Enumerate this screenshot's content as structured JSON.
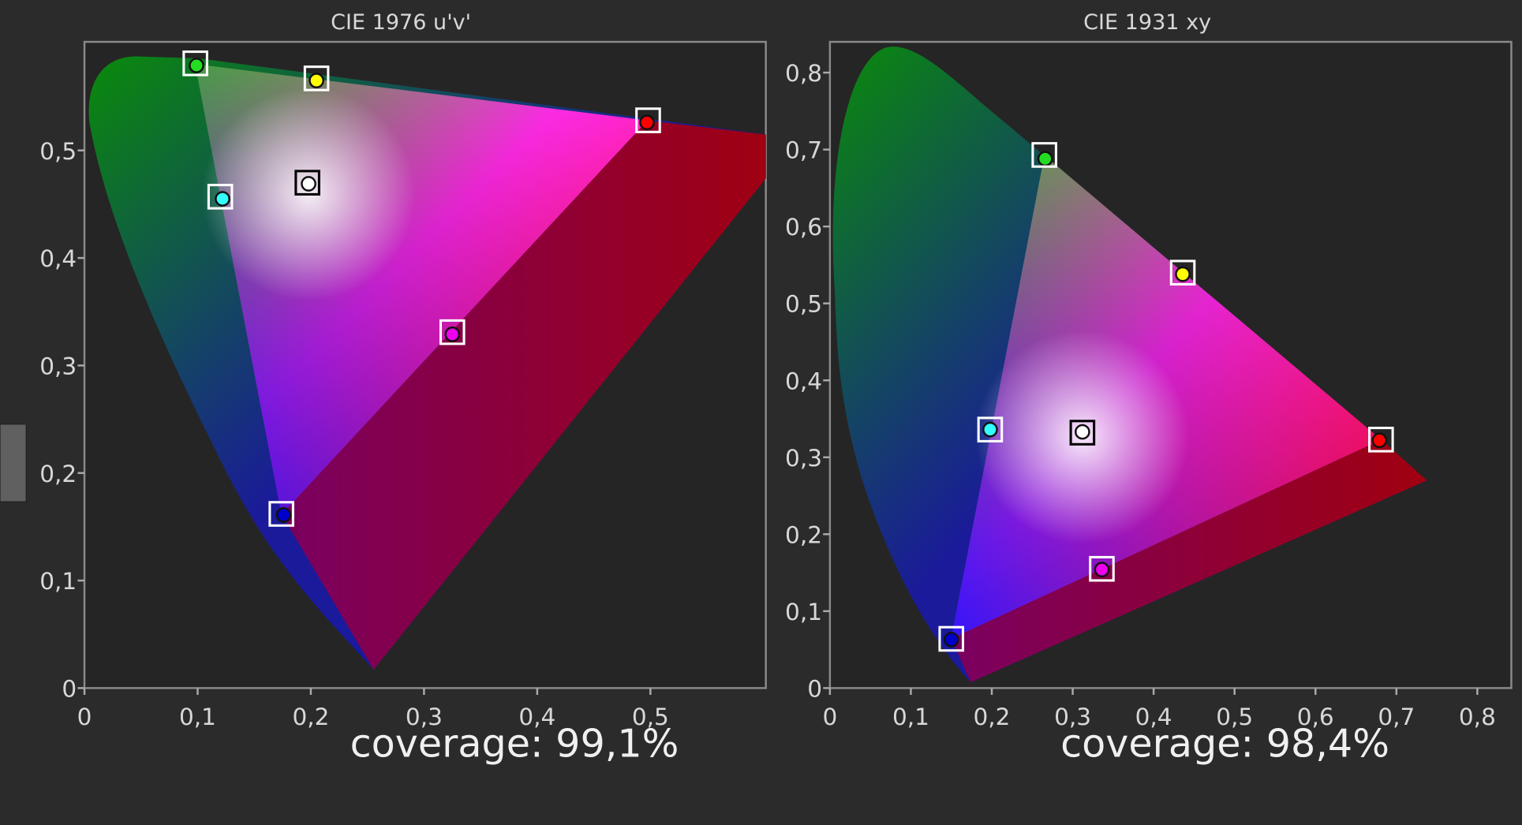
{
  "chart_data": [
    {
      "type": "scatter",
      "title": "CIE 1976 u'v'",
      "annotation": "coverage: 99,1%",
      "xlim": [
        0,
        0.602
      ],
      "ylim": [
        0,
        0.601
      ],
      "xticks": [
        0,
        {
          "value": 0.1,
          "label": "0,1"
        },
        {
          "value": 0.2,
          "label": "0,2"
        },
        {
          "value": 0.3,
          "label": "0,3"
        },
        {
          "value": 0.4,
          "label": "0,4"
        },
        {
          "value": 0.5,
          "label": "0,5"
        }
      ],
      "yticks": [
        0,
        {
          "value": 0.1,
          "label": "0,1"
        },
        {
          "value": 0.2,
          "label": "0,2"
        },
        {
          "value": 0.3,
          "label": "0,3"
        },
        {
          "value": 0.4,
          "label": "0,4"
        },
        {
          "value": 0.5,
          "label": "0,5"
        }
      ],
      "series": [
        {
          "marker": "circle",
          "x": [
            0.099,
            0.205,
            0.497,
            0.198,
            0.122,
            0.325,
            0.176
          ],
          "values": [
            0.579,
            0.565,
            0.526,
            0.469,
            0.455,
            0.329,
            0.161
          ],
          "colors": [
            "#22dd22",
            "#ffff00",
            "#ff0000",
            "#ffffff",
            "#33ffff",
            "#ee00ee",
            "#0000cc"
          ]
        },
        {
          "marker": "square",
          "x": [
            0.098,
            0.205,
            0.498,
            0.197,
            0.12,
            0.325,
            0.174
          ],
          "values": [
            0.581,
            0.567,
            0.528,
            0.47,
            0.457,
            0.331,
            0.162
          ],
          "colors": [
            "#ffffff",
            "#ffffff",
            "#ffffff",
            "#000000",
            "#ffffff",
            "#ffffff",
            "#ffffff"
          ]
        }
      ]
    },
    {
      "type": "scatter",
      "title": "CIE 1931 xy",
      "annotation": "coverage: 98,4%",
      "xlim": [
        0,
        0.842
      ],
      "ylim": [
        0,
        0.84
      ],
      "xticks": [
        0,
        {
          "value": 0.1,
          "label": "0,1"
        },
        {
          "value": 0.2,
          "label": "0,2"
        },
        {
          "value": 0.3,
          "label": "0,3"
        },
        {
          "value": 0.4,
          "label": "0,4"
        },
        {
          "value": 0.5,
          "label": "0,5"
        },
        {
          "value": 0.6,
          "label": "0,6"
        },
        {
          "value": 0.7,
          "label": "0,7"
        },
        {
          "value": 0.8,
          "label": "0,8"
        }
      ],
      "yticks": [
        0,
        {
          "value": 0.1,
          "label": "0,1"
        },
        {
          "value": 0.2,
          "label": "0,2"
        },
        {
          "value": 0.3,
          "label": "0,3"
        },
        {
          "value": 0.4,
          "label": "0,4"
        },
        {
          "value": 0.5,
          "label": "0,5"
        },
        {
          "value": 0.6,
          "label": "0,6"
        },
        {
          "value": 0.7,
          "label": "0,7"
        },
        {
          "value": 0.8,
          "label": "0,8"
        }
      ],
      "series": [
        {
          "marker": "circle",
          "x": [
            0.266,
            0.436,
            0.679,
            0.312,
            0.198,
            0.336,
            0.15
          ],
          "values": [
            0.688,
            0.538,
            0.322,
            0.333,
            0.336,
            0.154,
            0.063
          ],
          "colors": [
            "#22dd22",
            "#ffff00",
            "#ff0000",
            "#ffffff",
            "#33ffff",
            "#ee00ee",
            "#0000cc"
          ]
        },
        {
          "marker": "square",
          "x": [
            0.265,
            0.436,
            0.681,
            0.312,
            0.198,
            0.336,
            0.15
          ],
          "values": [
            0.693,
            0.54,
            0.323,
            0.332,
            0.336,
            0.155,
            0.064
          ],
          "colors": [
            "#ffffff",
            "#ffffff",
            "#ffffff",
            "#000000",
            "#ffffff",
            "#ffffff",
            "#ffffff"
          ]
        }
      ]
    }
  ]
}
